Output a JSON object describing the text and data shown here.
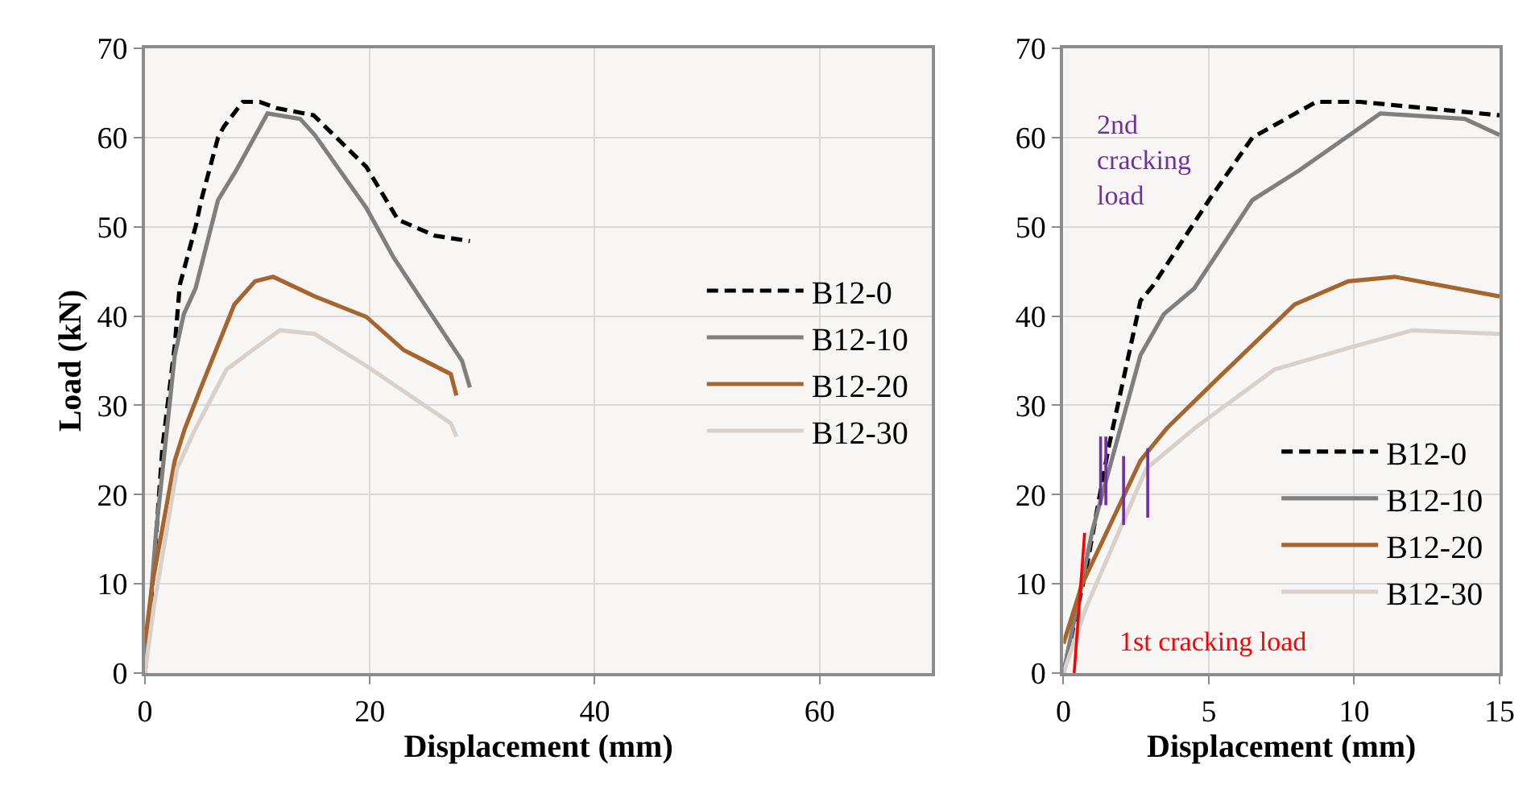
{
  "chart_data": [
    {
      "type": "line",
      "xlabel": "Displacement (mm)",
      "ylabel": "Load (kN)",
      "xlim": [
        0,
        70
      ],
      "ylim": [
        0,
        70
      ],
      "xticks": [
        0,
        20,
        40,
        60
      ],
      "yticks": [
        0,
        10,
        20,
        30,
        40,
        50,
        60,
        70
      ],
      "grid": true,
      "legend": "right",
      "series": [
        {
          "name": "B12-0",
          "color": "#000000",
          "line_style": "dashed",
          "x": [
            0,
            0.8,
            1.55,
            2.65,
            3.1,
            4.5,
            5.05,
            6.5,
            7.0,
            8.7,
            9.2,
            10.2,
            11.7,
            15,
            19.7,
            22.5,
            25.8,
            28.9
          ],
          "values": [
            0,
            11.9,
            25.2,
            36.7,
            43.5,
            50,
            53.2,
            60,
            61.2,
            64,
            64,
            64,
            63.3,
            62.5,
            56.7,
            50.8,
            49,
            48.4
          ]
        },
        {
          "name": "B12-10",
          "color": "#7f7f7f",
          "x": [
            0,
            1.0,
            2.65,
            3.45,
            4.5,
            6.5,
            8.1,
            10.9,
            13.8,
            15.1,
            19.7,
            22.1,
            24.4,
            28.2,
            28.9
          ],
          "values": [
            0,
            16,
            35.6,
            40.2,
            43.1,
            53,
            56.3,
            62.7,
            62.1,
            60.3,
            52.1,
            46.6,
            42.2,
            35,
            32
          ]
        },
        {
          "name": "B12-20",
          "color": "#a5652d",
          "x": [
            0,
            0.65,
            2.65,
            3.55,
            5.05,
            7.95,
            9.8,
            11.4,
            15.1,
            19.7,
            23,
            25.8,
            27.2,
            27.7
          ],
          "values": [
            3.3,
            10,
            23.8,
            27.4,
            32.2,
            41.3,
            43.9,
            44.4,
            42.2,
            39.9,
            36.2,
            34.4,
            33.5,
            31.1
          ]
        },
        {
          "name": "B12-30",
          "color": "#d9d0c9",
          "x": [
            0,
            0.8,
            2.85,
            4.5,
            7.25,
            10,
            12,
            15.1,
            19.7,
            27.2,
            27.7
          ],
          "values": [
            0,
            7.5,
            22.9,
            27.4,
            34,
            36.6,
            38.4,
            38,
            34.4,
            28,
            26.5
          ]
        }
      ]
    },
    {
      "type": "line",
      "xlabel": "Displacement (mm)",
      "xlim": [
        0,
        15
      ],
      "ylim": [
        0,
        70
      ],
      "xticks": [
        0,
        5,
        10,
        15
      ],
      "yticks": [
        0,
        10,
        20,
        30,
        40,
        50,
        60,
        70
      ],
      "grid": true,
      "legend": "bottom right",
      "series": [
        {
          "name": "B12-0",
          "color": "#000000",
          "line_style": "dashed",
          "x": [
            0,
            0.8,
            1.55,
            2.65,
            3.1,
            5.05,
            6.5,
            8.7,
            10.2,
            15
          ],
          "values": [
            0,
            11.9,
            25.2,
            41.7,
            43.5,
            53.2,
            60,
            64,
            64,
            62.5
          ]
        },
        {
          "name": "B12-10",
          "color": "#7f7f7f",
          "x": [
            0,
            1.0,
            2.65,
            3.45,
            4.5,
            6.5,
            8.1,
            10.9,
            13.8,
            15
          ],
          "values": [
            0,
            16,
            35.6,
            40.2,
            43.1,
            53,
            56.3,
            62.7,
            62.1,
            60.3
          ]
        },
        {
          "name": "B12-20",
          "color": "#a5652d",
          "x": [
            0,
            0.65,
            2.65,
            3.55,
            5.05,
            7.95,
            9.8,
            11.4,
            15
          ],
          "values": [
            3.3,
            10,
            23.8,
            27.4,
            32.2,
            41.3,
            43.9,
            44.4,
            42.2
          ]
        },
        {
          "name": "B12-30",
          "color": "#d9d0c9",
          "x": [
            0,
            0.8,
            2.85,
            4.5,
            7.25,
            10,
            12,
            15
          ],
          "values": [
            0,
            7.5,
            22.9,
            27.4,
            34,
            36.6,
            38.4,
            38
          ]
        },
        {
          "color": "#7030a0",
          "x": [
            1.28,
            1.28,
            null,
            1.46,
            1.46,
            null,
            2.07,
            2.07,
            null,
            2.9,
            2.9
          ],
          "values": [
            18.8,
            26.5,
            null,
            18.8,
            26.5,
            null,
            16.6,
            24.3,
            null,
            17.4,
            25.2
          ]
        },
        {
          "color": "#ff0000",
          "x": [
            0.37,
            0.73
          ],
          "values": [
            0,
            15.7
          ]
        }
      ],
      "annotations": [
        "2nd\ncracking\nload",
        "1st cracking load"
      ]
    }
  ]
}
